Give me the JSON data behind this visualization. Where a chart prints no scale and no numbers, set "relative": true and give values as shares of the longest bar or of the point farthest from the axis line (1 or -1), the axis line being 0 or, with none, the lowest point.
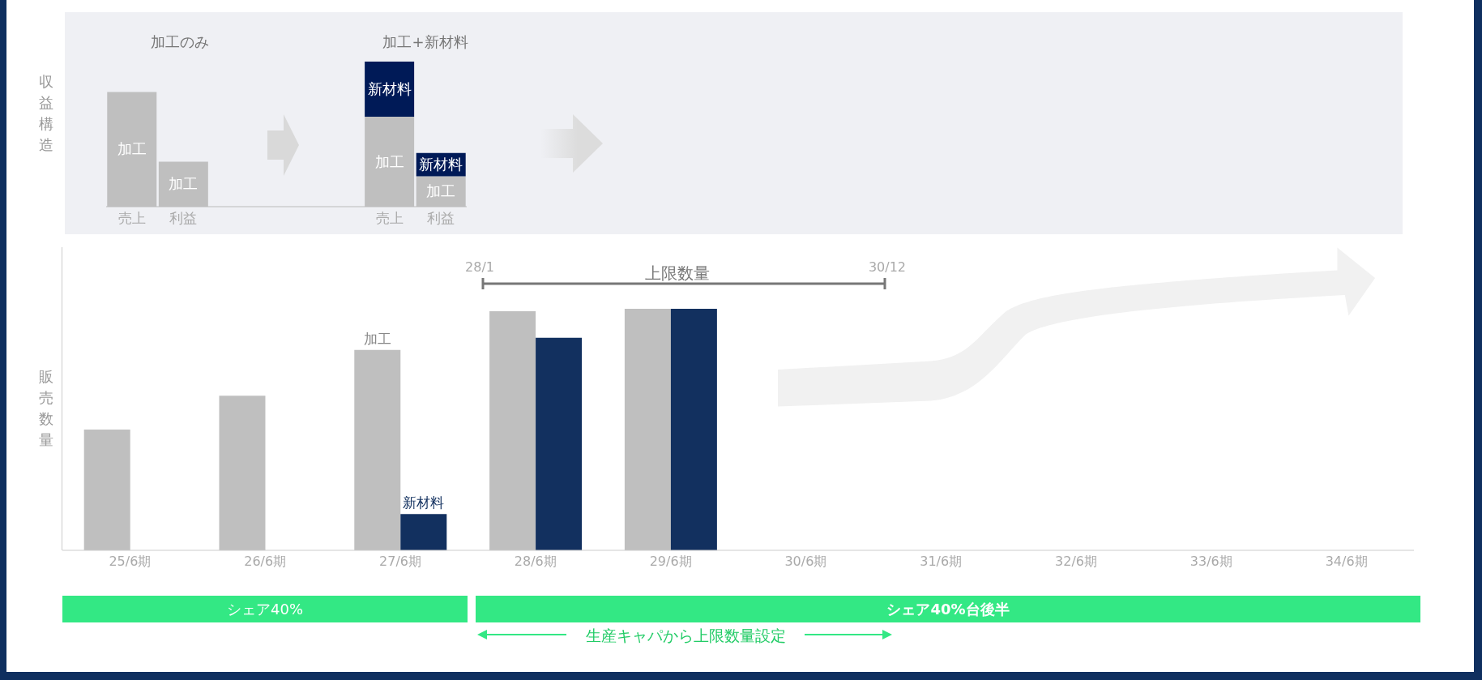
{
  "chart_data": [
    {
      "type": "bar",
      "stacked": true,
      "relative": true,
      "ylabel": "収益構造",
      "categories": [
        "売上",
        "利益",
        null,
        null,
        null,
        "売上",
        "利益"
      ],
      "series": [
        {
          "name": "加工",
          "color": "#bfbfbf",
          "values": [
            0.79,
            0.31,
            null,
            null,
            null,
            0.62,
            0.21
          ]
        },
        {
          "name": "新材料",
          "color": "#001a57",
          "values": [
            null,
            null,
            null,
            null,
            null,
            0.38,
            0.16
          ]
        }
      ],
      "annotations": [
        "加工のみ",
        "加工+新材料"
      ]
    },
    {
      "type": "bar",
      "relative": true,
      "ylabel": "販売数量",
      "categories": [
        "25/6期",
        "26/6期",
        "27/6期",
        "28/6期",
        "29/6期",
        "30/6期",
        "31/6期",
        "32/6期",
        "33/6期",
        "34/6期"
      ],
      "series": [
        {
          "name": "加工",
          "color": "#bfbfbf",
          "values": [
            0.5,
            0.64,
            0.83,
            0.99,
            1,
            null,
            null,
            null,
            null,
            null
          ]
        },
        {
          "name": "新材料",
          "color": "#12305f",
          "values": [
            null,
            null,
            0.15,
            0.88,
            1,
            null,
            null,
            null,
            null,
            null
          ]
        }
      ],
      "annotations": [
        "28/1",
        "上限数量",
        "30/12",
        "シェア40%",
        "シェア40%台後半",
        "生産キャパから上限数量設定"
      ]
    }
  ]
}
